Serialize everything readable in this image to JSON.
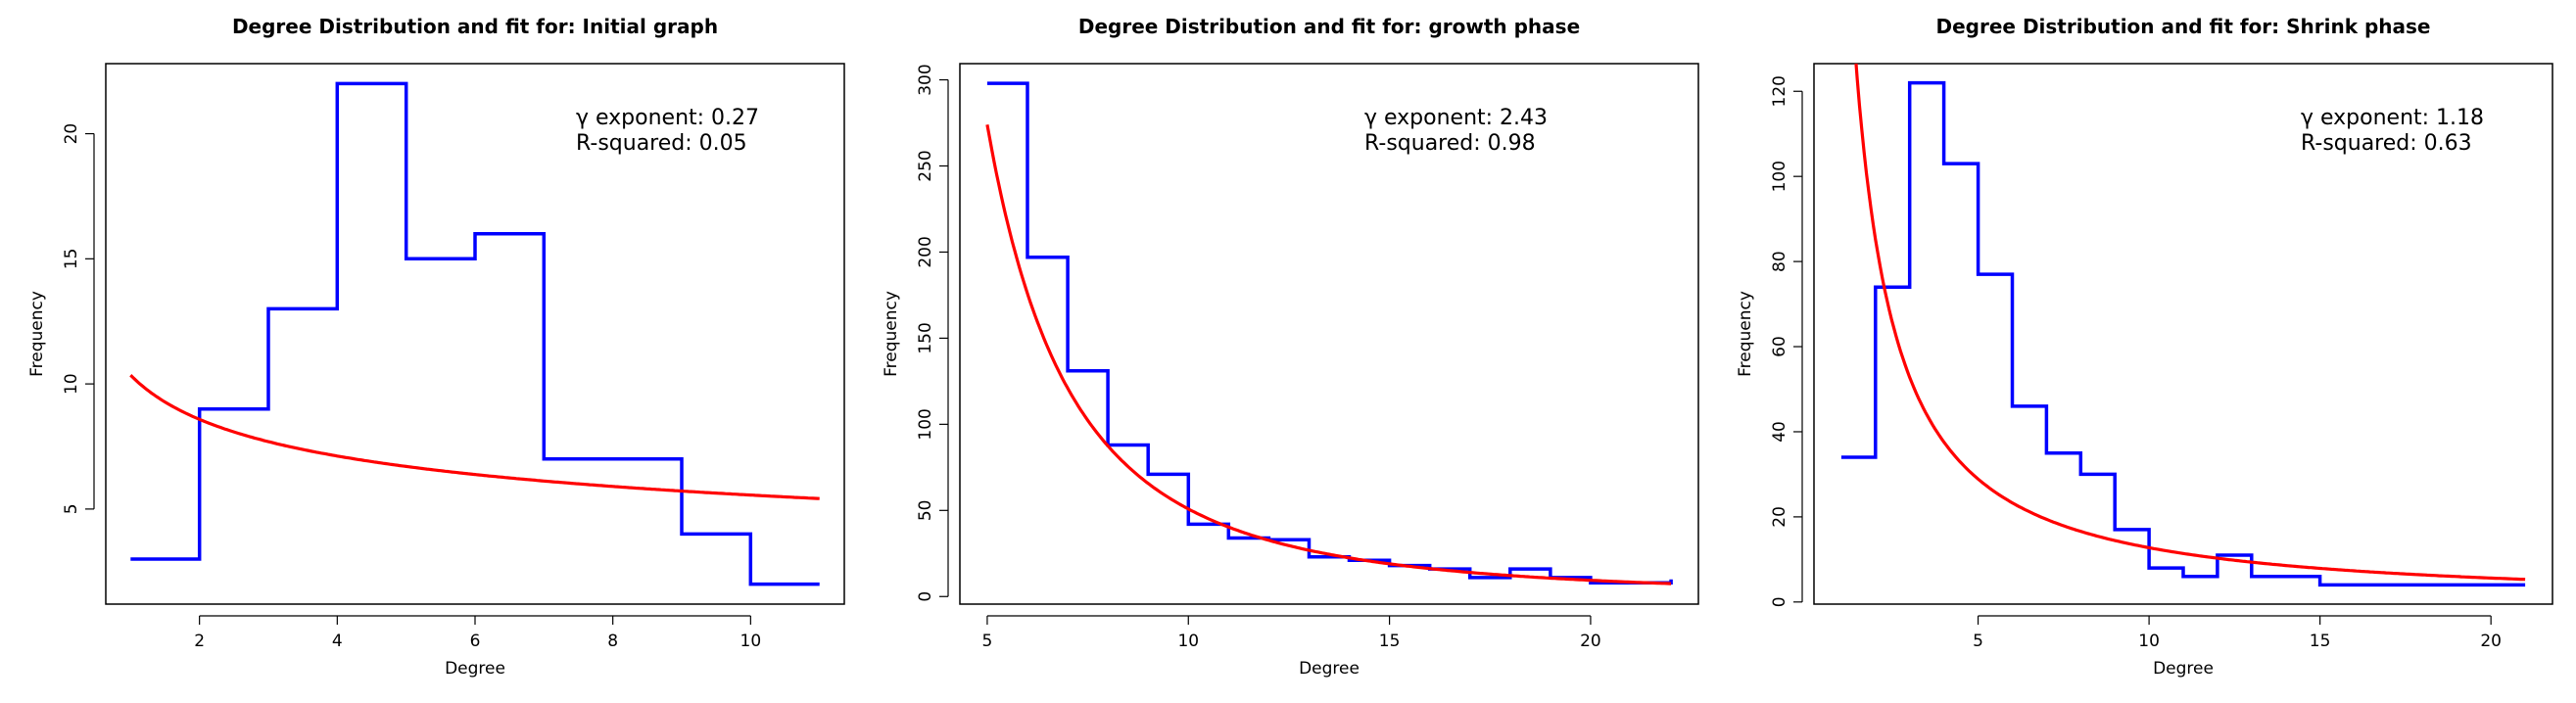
{
  "chart_data": [
    {
      "type": "line",
      "title": "Degree Distribution and fit for: Initial graph",
      "xlabel": "Degree",
      "ylabel": "Frequency",
      "xlim": [
        0.64,
        11.36
      ],
      "ylim": [
        1.2,
        22.8
      ],
      "xticks": [
        2,
        4,
        6,
        8,
        10
      ],
      "yticks": [
        5,
        10,
        15,
        20
      ],
      "annotation": {
        "gamma_label": "γ exponent:  0.27",
        "r2_label": "R-squared:  0.05"
      },
      "series": [
        {
          "color": "#0000ff",
          "style": "step",
          "x": [
            1,
            2,
            3,
            4,
            5,
            6,
            7,
            8,
            9,
            10,
            11
          ],
          "values": [
            3,
            9,
            13,
            22,
            15,
            16,
            7,
            7,
            4,
            2,
            2
          ]
        },
        {
          "color": "#ff0000",
          "style": "line",
          "fit": {
            "a": 10.35,
            "gamma": 0.27,
            "xmin": 1,
            "xmax": 11
          }
        }
      ]
    },
    {
      "type": "line",
      "title": "Degree Distribution and fit for: growth phase",
      "xlabel": "Degree",
      "ylabel": "Frequency",
      "xlim": [
        4.32,
        22.68
      ],
      "ylim": [
        -4.4,
        309.4
      ],
      "xticks": [
        5,
        10,
        15,
        20
      ],
      "yticks": [
        0,
        50,
        100,
        150,
        200,
        250,
        300
      ],
      "annotation": {
        "gamma_label": "γ exponent:  2.43",
        "r2_label": "R-squared:  0.98"
      },
      "series": [
        {
          "color": "#0000ff",
          "style": "step",
          "x": [
            5,
            6,
            7,
            8,
            9,
            10,
            11,
            12,
            13,
            14,
            15,
            16,
            17,
            18,
            19,
            20,
            21,
            22
          ],
          "values": [
            298,
            197,
            131,
            88,
            71,
            42,
            34,
            33,
            23,
            21,
            18,
            16,
            11,
            16,
            11,
            8,
            8,
            10
          ]
        },
        {
          "color": "#ff0000",
          "style": "line",
          "fit": {
            "a": 274,
            "gamma": 2.43,
            "xmin": 5,
            "xmax": 22
          }
        }
      ]
    },
    {
      "type": "line",
      "title": "Degree Distribution and fit for: Shrink phase",
      "xlabel": "Degree",
      "ylabel": "Frequency",
      "xlim": [
        0.2,
        21.8
      ],
      "ylim": [
        -0.5,
        126.5
      ],
      "xticks": [
        5,
        10,
        15,
        20
      ],
      "yticks": [
        0,
        20,
        40,
        60,
        80,
        100,
        120
      ],
      "annotation": {
        "gamma_label": "γ exponent:  1.18",
        "r2_label": "R-squared:  0.63"
      },
      "series": [
        {
          "color": "#0000ff",
          "style": "step",
          "x": [
            1,
            2,
            3,
            4,
            5,
            6,
            7,
            8,
            9,
            10,
            11,
            12,
            13,
            14,
            15,
            16,
            17,
            18,
            19,
            20,
            21
          ],
          "values": [
            34,
            74,
            122,
            103,
            77,
            46,
            35,
            30,
            17,
            8,
            6,
            11,
            6,
            6,
            4,
            4,
            4,
            4,
            4,
            4,
            4
          ]
        },
        {
          "color": "#ff0000",
          "style": "line",
          "fit": {
            "a": 193,
            "gamma": 1.18,
            "xmin": 1,
            "xmax": 21
          }
        }
      ]
    }
  ]
}
